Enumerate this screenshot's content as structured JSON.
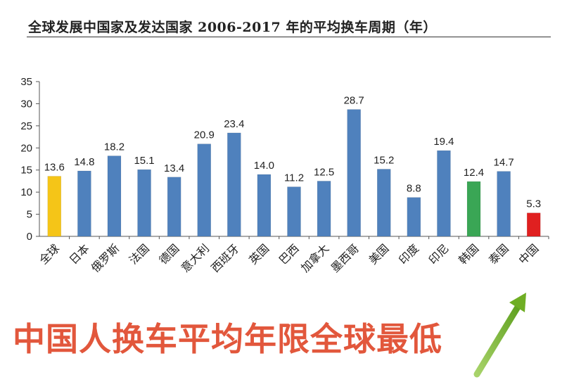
{
  "chart_data": {
    "type": "bar",
    "title": "全球发展中国家及发达国家 2006-2017 年的平均换车周期（年）",
    "categories": [
      "全球",
      "日本",
      "俄罗斯",
      "法国",
      "德国",
      "意大利",
      "西班牙",
      "英国",
      "巴西",
      "加拿大",
      "墨西哥",
      "美国",
      "印度",
      "印尼",
      "韩国",
      "泰国",
      "中国"
    ],
    "values": [
      13.6,
      14.8,
      18.2,
      15.1,
      13.4,
      20.9,
      23.4,
      14.0,
      11.2,
      12.5,
      28.7,
      15.2,
      8.8,
      19.4,
      12.4,
      14.7,
      5.3
    ],
    "value_labels": [
      "13.6",
      "14.8",
      "18.2",
      "15.1",
      "13.4",
      "20.9",
      "23.4",
      "14.0",
      "11.2",
      "12.5",
      "28.7",
      "15.2",
      "8.8",
      "19.4",
      "12.4",
      "14.7",
      "5.3"
    ],
    "yticks": [
      "0",
      "5",
      "10",
      "15",
      "20",
      "25",
      "30",
      "35"
    ],
    "ylim": [
      0,
      35
    ],
    "grid": false,
    "colors": {
      "default": "#4f81bd",
      "全球": "#f5c518",
      "韩国": "#3aa655",
      "中国": "#e02020"
    }
  },
  "headline": "中国人换车平均年限全球最低",
  "colors": {
    "headline": "#e2573c",
    "arrow": "#6fae24"
  },
  "decor": {
    "arrow_icon": "up-right-arrow-icon"
  }
}
